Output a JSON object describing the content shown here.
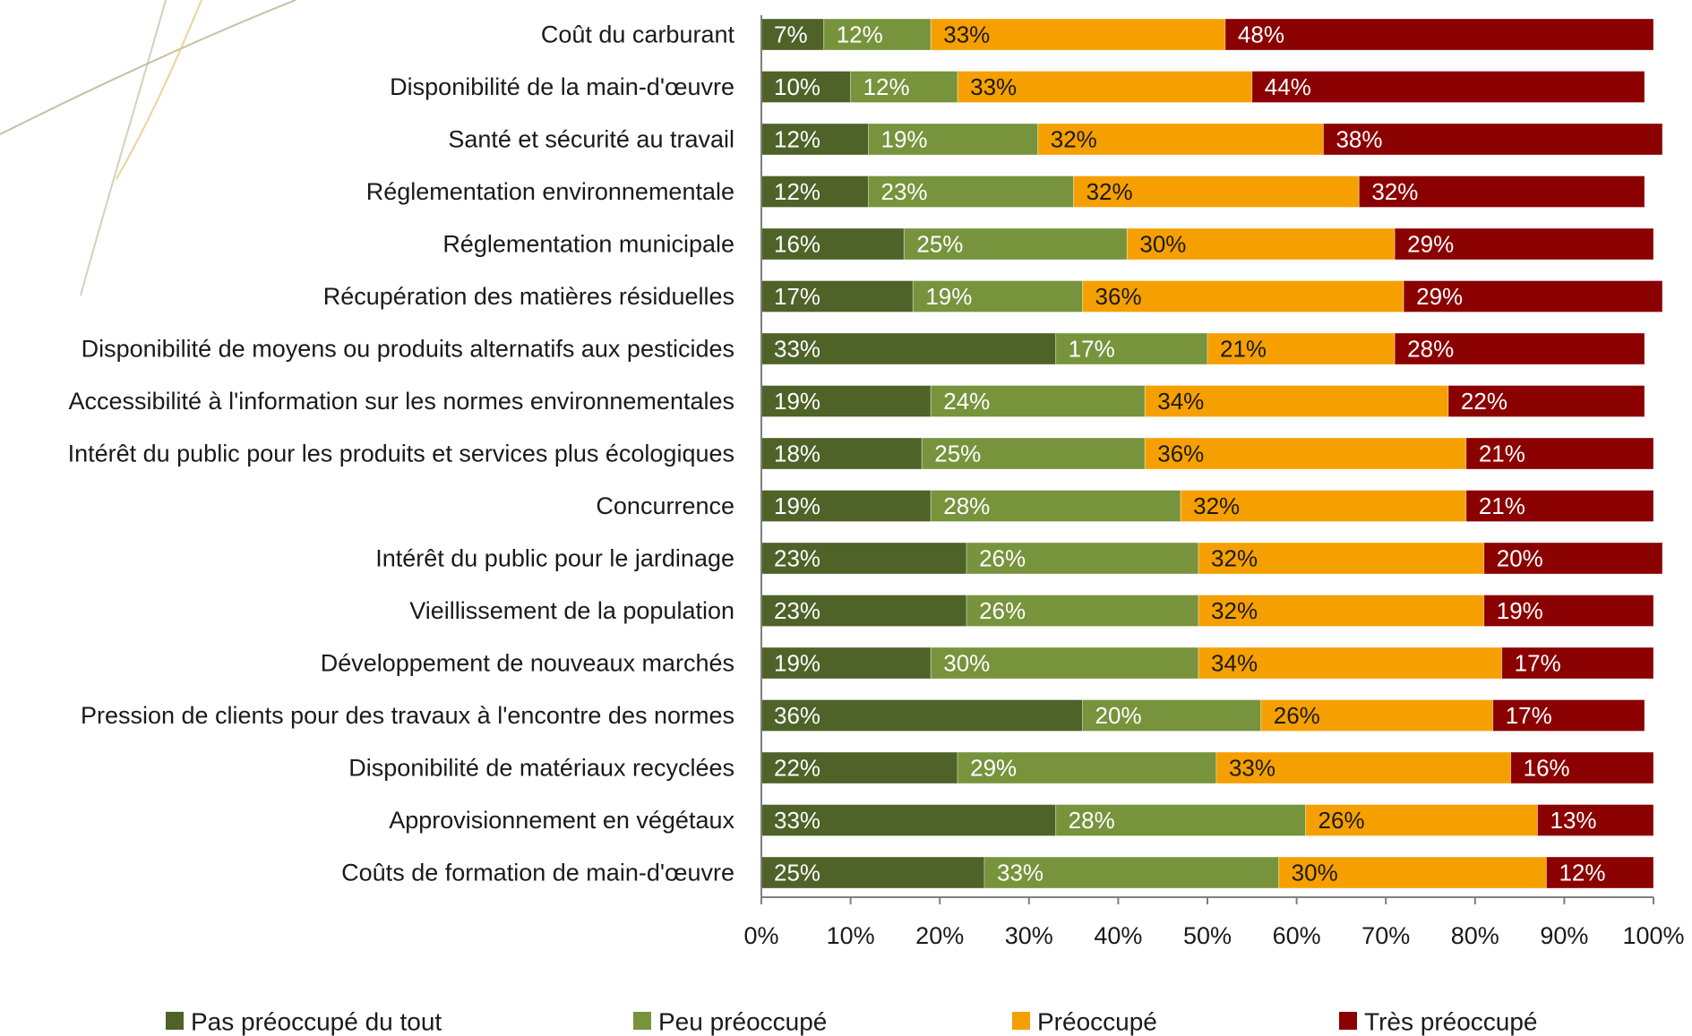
{
  "colors": {
    "series": [
      "#4f6228",
      "#77933c",
      "#f5a000",
      "#8b0000"
    ],
    "swoosh": [
      "#b8b08c",
      "#e8c880"
    ]
  },
  "chart_data": {
    "type": "bar",
    "orientation": "horizontal",
    "stacked": "percent",
    "xlim": [
      0,
      100
    ],
    "x_ticks": [
      "0%",
      "10%",
      "20%",
      "30%",
      "40%",
      "50%",
      "60%",
      "70%",
      "80%",
      "90%",
      "100%"
    ],
    "grid": false,
    "legend_position": "bottom",
    "categories": [
      "Coût du carburant",
      "Disponibilité de la main-d'œuvre",
      "Santé et sécurité au travail",
      "Réglementation environnementale",
      "Réglementation municipale",
      "Récupération des matières résiduelles",
      "Disponibilité de moyens ou produits alternatifs aux pesticides",
      "Accessibilité à l'information sur les normes environnementales",
      "Intérêt du public pour les produits et services plus écologiques",
      "Concurrence",
      "Intérêt du public pour le jardinage",
      "Vieillissement de la population",
      "Développement de nouveaux marchés",
      "Pression de clients pour des travaux à l'encontre des normes",
      "Disponibilité de matériaux recyclées",
      "Approvisionnement en végétaux",
      "Coûts de formation de main-d'œuvre"
    ],
    "series": [
      {
        "name": "Pas préoccupé du tout",
        "values": [
          7,
          10,
          12,
          12,
          16,
          17,
          33,
          19,
          18,
          19,
          23,
          23,
          19,
          36,
          22,
          33,
          25
        ]
      },
      {
        "name": "Peu préoccupé",
        "values": [
          12,
          12,
          19,
          23,
          25,
          19,
          17,
          24,
          25,
          28,
          26,
          26,
          30,
          20,
          29,
          28,
          33
        ]
      },
      {
        "name": "Préoccupé",
        "values": [
          33,
          33,
          32,
          32,
          30,
          36,
          21,
          34,
          36,
          32,
          32,
          32,
          34,
          26,
          33,
          26,
          30
        ]
      },
      {
        "name": "Très préoccupé",
        "values": [
          48,
          44,
          38,
          32,
          29,
          29,
          28,
          22,
          21,
          21,
          20,
          19,
          17,
          17,
          16,
          13,
          12
        ]
      }
    ]
  }
}
